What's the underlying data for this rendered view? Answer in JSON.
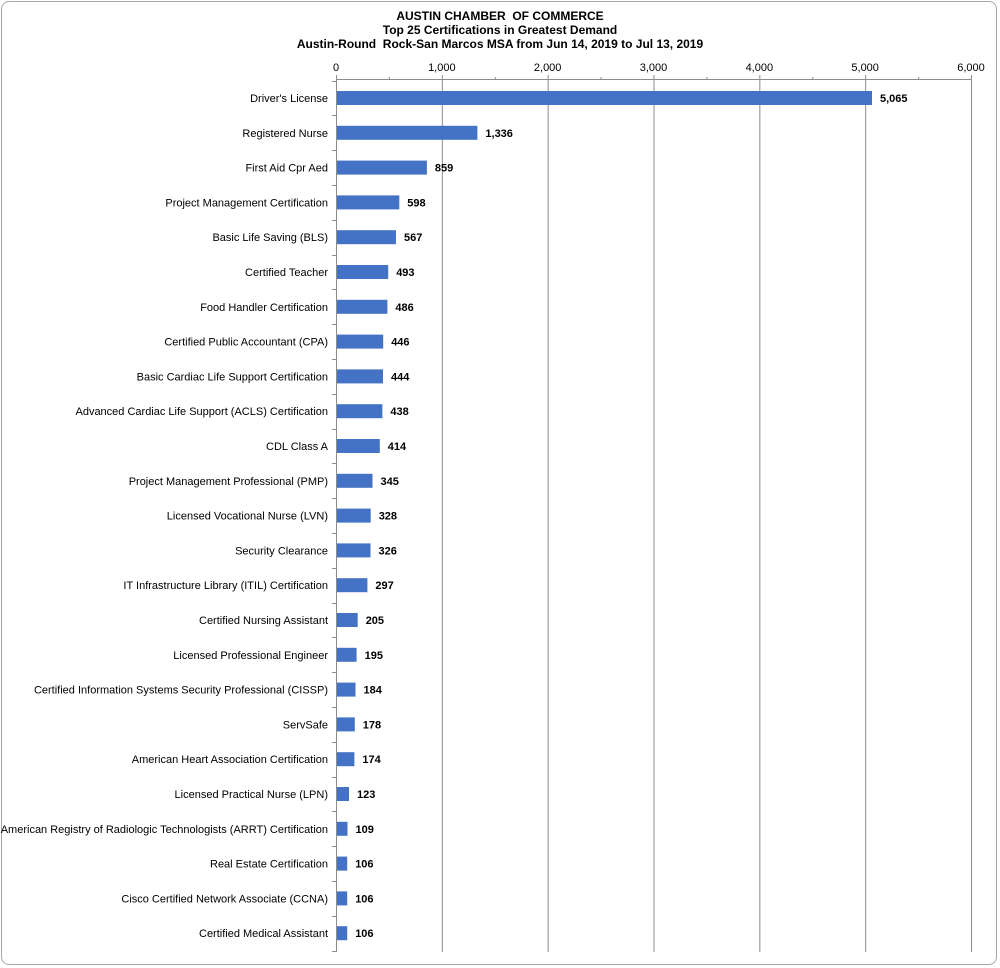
{
  "chart_data": {
    "type": "bar",
    "orientation": "horizontal",
    "title": "AUSTIN CHAMBER  OF COMMERCE",
    "subtitle": "Top 25 Certifications in Greatest Demand",
    "subtitle2": "Austin-Round  Rock-San Marcos MSA from Jun 14, 2019 to Jul 13, 2019",
    "xlabel": "",
    "ylabel": "",
    "xlim": [
      0,
      6000
    ],
    "x_ticks": [
      0,
      1000,
      2000,
      3000,
      4000,
      5000,
      6000
    ],
    "x_tick_labels": [
      "0",
      "1,000",
      "2,000",
      "3,000",
      "4,000",
      "5,000",
      "6,000"
    ],
    "x_axis_position": "top",
    "grid": true,
    "legend": "none",
    "bar_color": "#4472c4",
    "categories": [
      "Driver's License",
      "Registered Nurse",
      "First Aid Cpr Aed",
      "Project Management Certification",
      "Basic Life Saving (BLS)",
      "Certified Teacher",
      "Food Handler Certification",
      "Certified Public Accountant (CPA)",
      "Basic Cardiac Life Support Certification",
      "Advanced Cardiac Life Support (ACLS) Certification",
      "CDL Class A",
      "Project Management Professional (PMP)",
      "Licensed Vocational Nurse (LVN)",
      "Security Clearance",
      "IT Infrastructure Library (ITIL) Certification",
      "Certified Nursing Assistant",
      "Licensed Professional Engineer",
      "Certified Information Systems Security Professional (CISSP)",
      "ServSafe",
      "American Heart Association Certification",
      "Licensed Practical Nurse (LPN)",
      "American Registry of Radiologic Technologists (ARRT) Certification",
      "Real Estate Certification",
      "Cisco Certified Network Associate (CCNA)",
      "Certified Medical Assistant"
    ],
    "values": [
      5065,
      1336,
      859,
      598,
      567,
      493,
      486,
      446,
      444,
      438,
      414,
      345,
      328,
      326,
      297,
      205,
      195,
      184,
      178,
      174,
      123,
      109,
      106,
      106,
      106
    ],
    "value_labels": [
      "5,065",
      "1,336",
      "859",
      "598",
      "567",
      "493",
      "486",
      "446",
      "444",
      "438",
      "414",
      "345",
      "328",
      "326",
      "297",
      "205",
      "195",
      "184",
      "178",
      "174",
      "123",
      "109",
      "106",
      "106",
      "106"
    ]
  }
}
